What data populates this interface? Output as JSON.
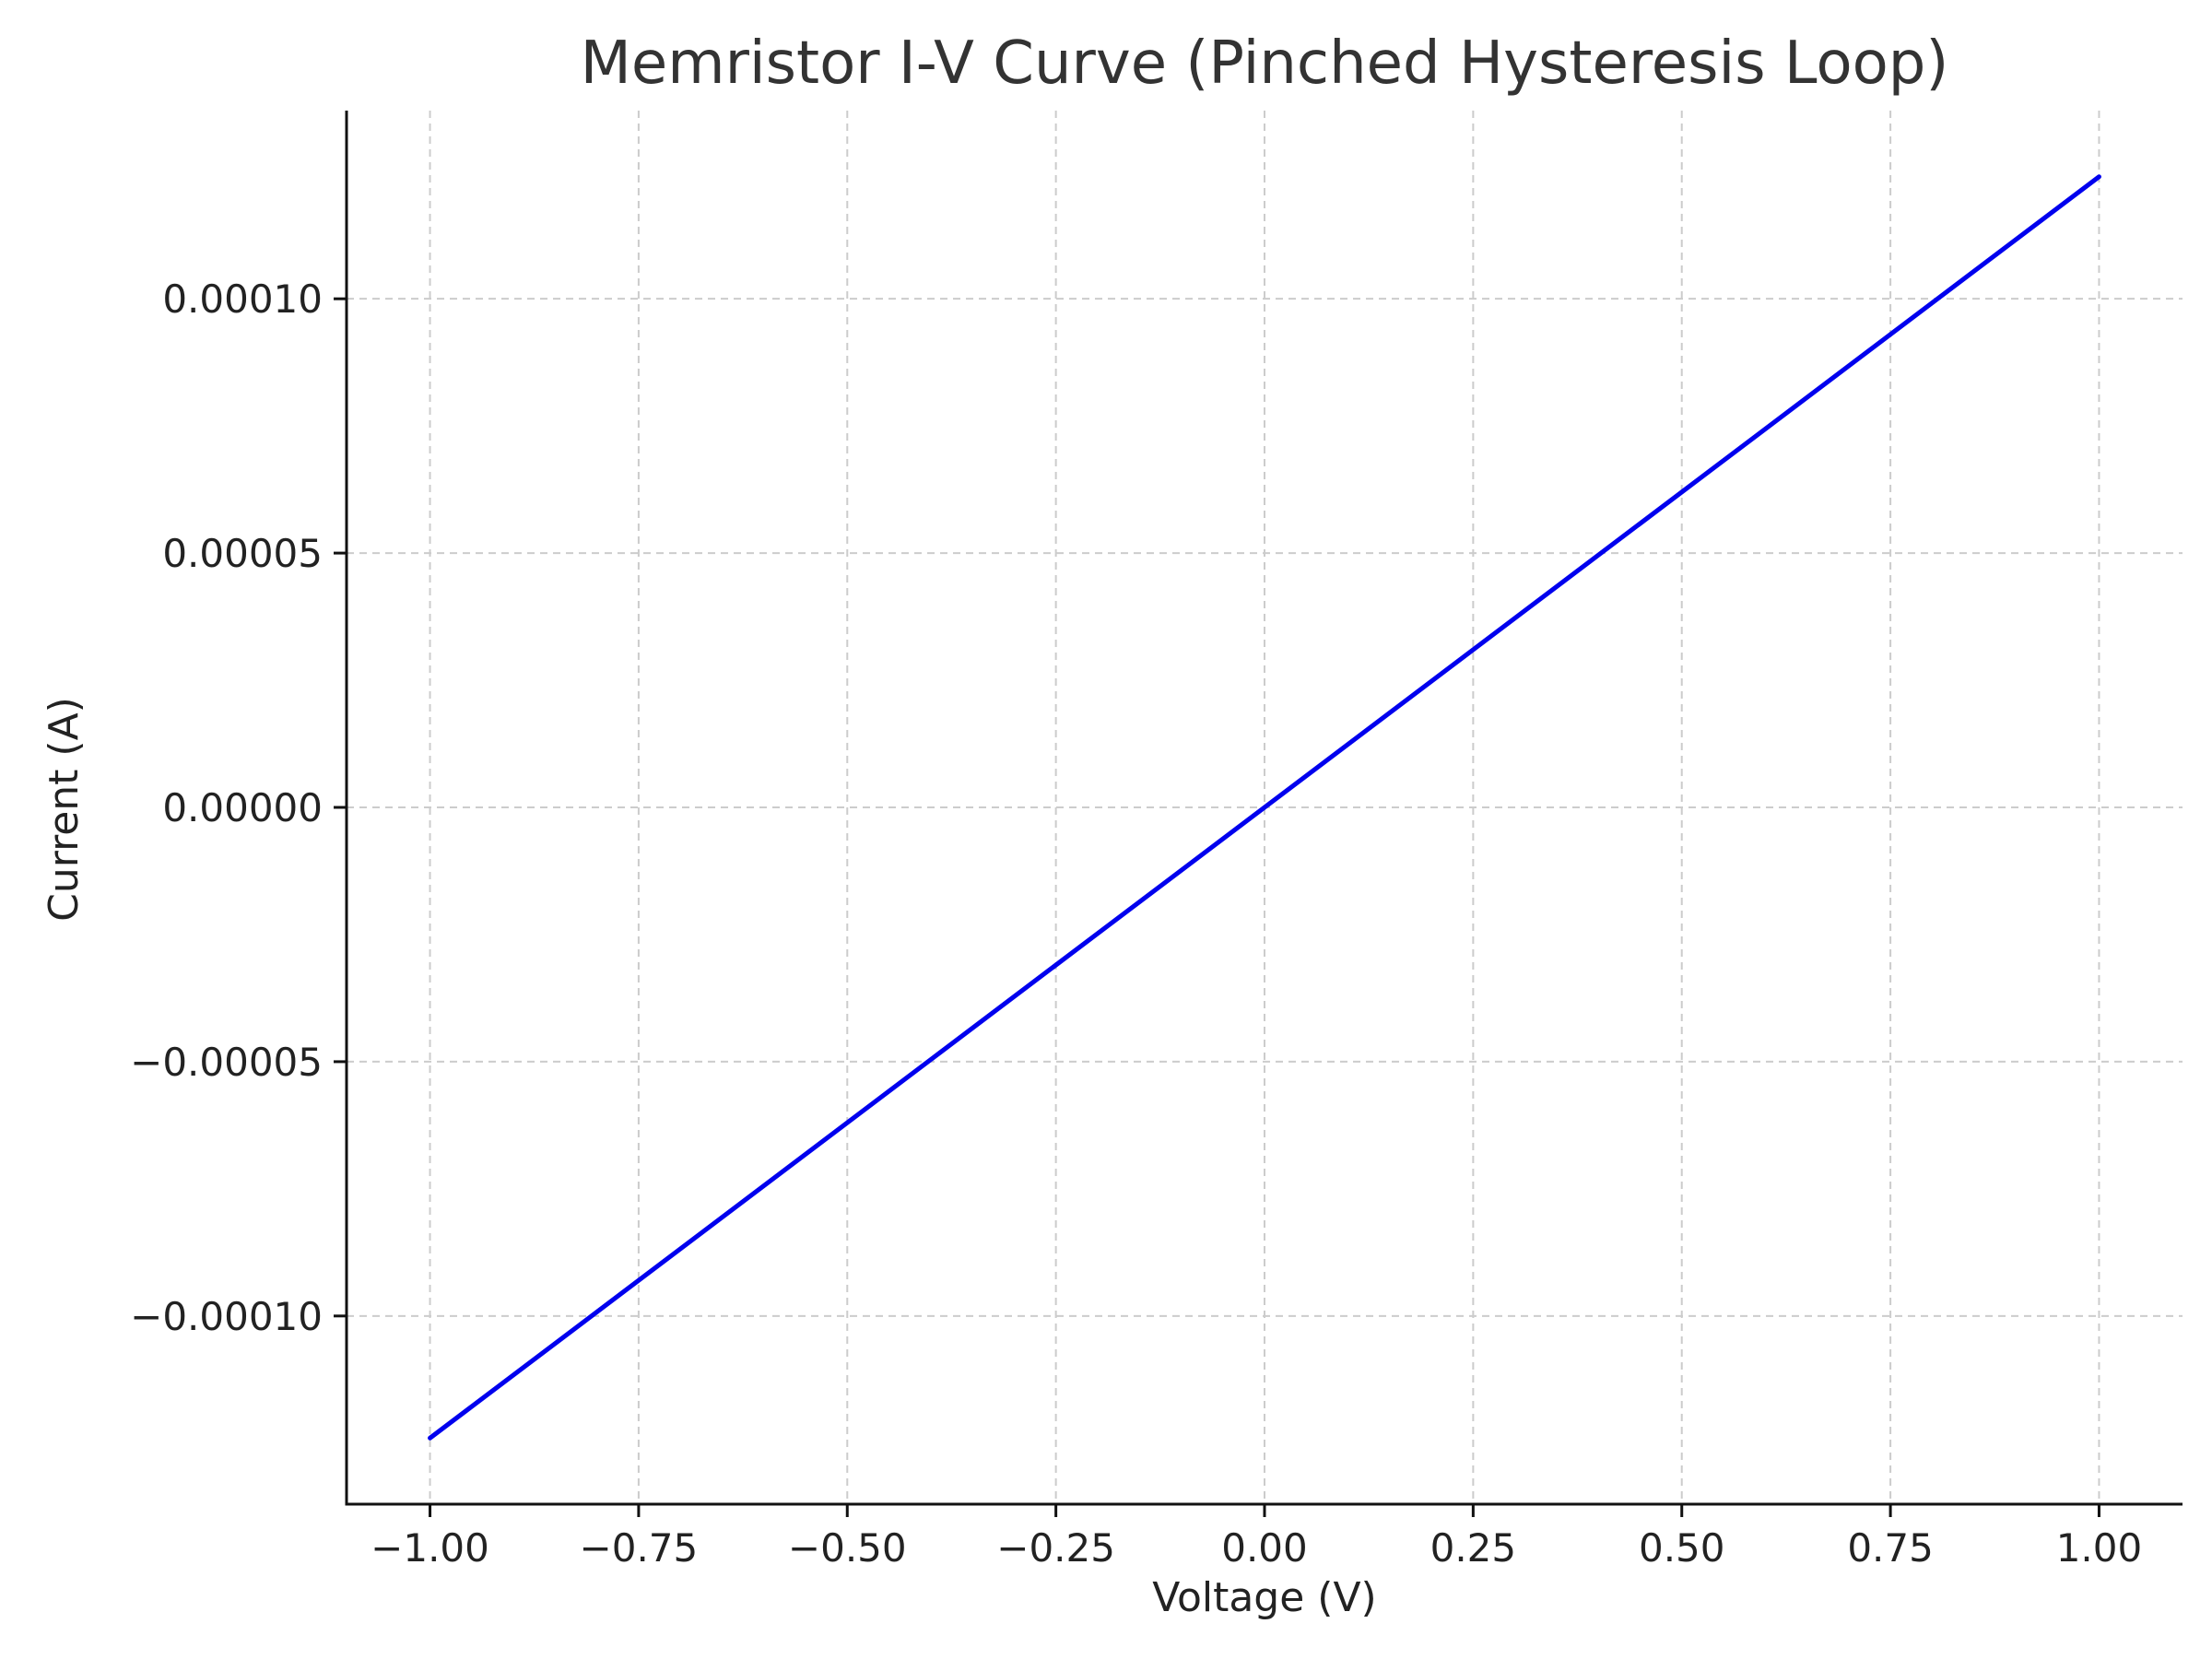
{
  "chart_data": {
    "type": "line",
    "title": "Memristor I-V Curve (Pinched Hysteresis Loop)",
    "xlabel": "Voltage (V)",
    "ylabel": "Current (A)",
    "xlim": [
      -1.1,
      1.1
    ],
    "ylim": [
      -0.000137,
      0.000137
    ],
    "xticks": [
      -1.0,
      -0.75,
      -0.5,
      -0.25,
      0.0,
      0.25,
      0.5,
      0.75,
      1.0
    ],
    "xtick_labels": [
      "−1.00",
      "−0.75",
      "−0.50",
      "−0.25",
      "0.00",
      "0.25",
      "0.50",
      "0.75",
      "1.00"
    ],
    "yticks": [
      0.0001,
      5e-05,
      0.0,
      -5e-05,
      -0.0001
    ],
    "ytick_labels": [
      "0.00010",
      "0.00005",
      "0.00000",
      "−0.00005",
      "−0.00010"
    ],
    "grid": true,
    "series": [
      {
        "color": "#0000ee",
        "x": [
          -1.0,
          1.0
        ],
        "y": [
          -0.000124,
          0.000124
        ]
      }
    ]
  }
}
